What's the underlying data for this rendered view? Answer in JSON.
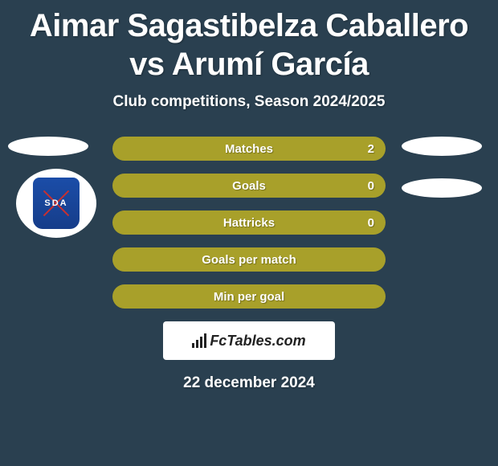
{
  "header": {
    "title": "Aimar Sagastibelza Caballero vs Arumí García",
    "subtitle": "Club competitions, Season 2024/2025"
  },
  "badge": {
    "text": "SDA"
  },
  "stats": {
    "bars": [
      {
        "label": "Matches",
        "value": "2",
        "show_value": true
      },
      {
        "label": "Goals",
        "value": "0",
        "show_value": true
      },
      {
        "label": "Hattricks",
        "value": "0",
        "show_value": true
      },
      {
        "label": "Goals per match",
        "value": "",
        "show_value": false
      },
      {
        "label": "Min per goal",
        "value": "",
        "show_value": false
      }
    ],
    "bar_color": "#a8a02a",
    "bar_text_color": "#ffffff"
  },
  "branding": {
    "site_name": "FcTables.com"
  },
  "footer": {
    "date": "22 december 2024"
  },
  "colors": {
    "background": "#2a4050",
    "marker": "#ffffff",
    "badge_bg": "#1b4da8"
  }
}
